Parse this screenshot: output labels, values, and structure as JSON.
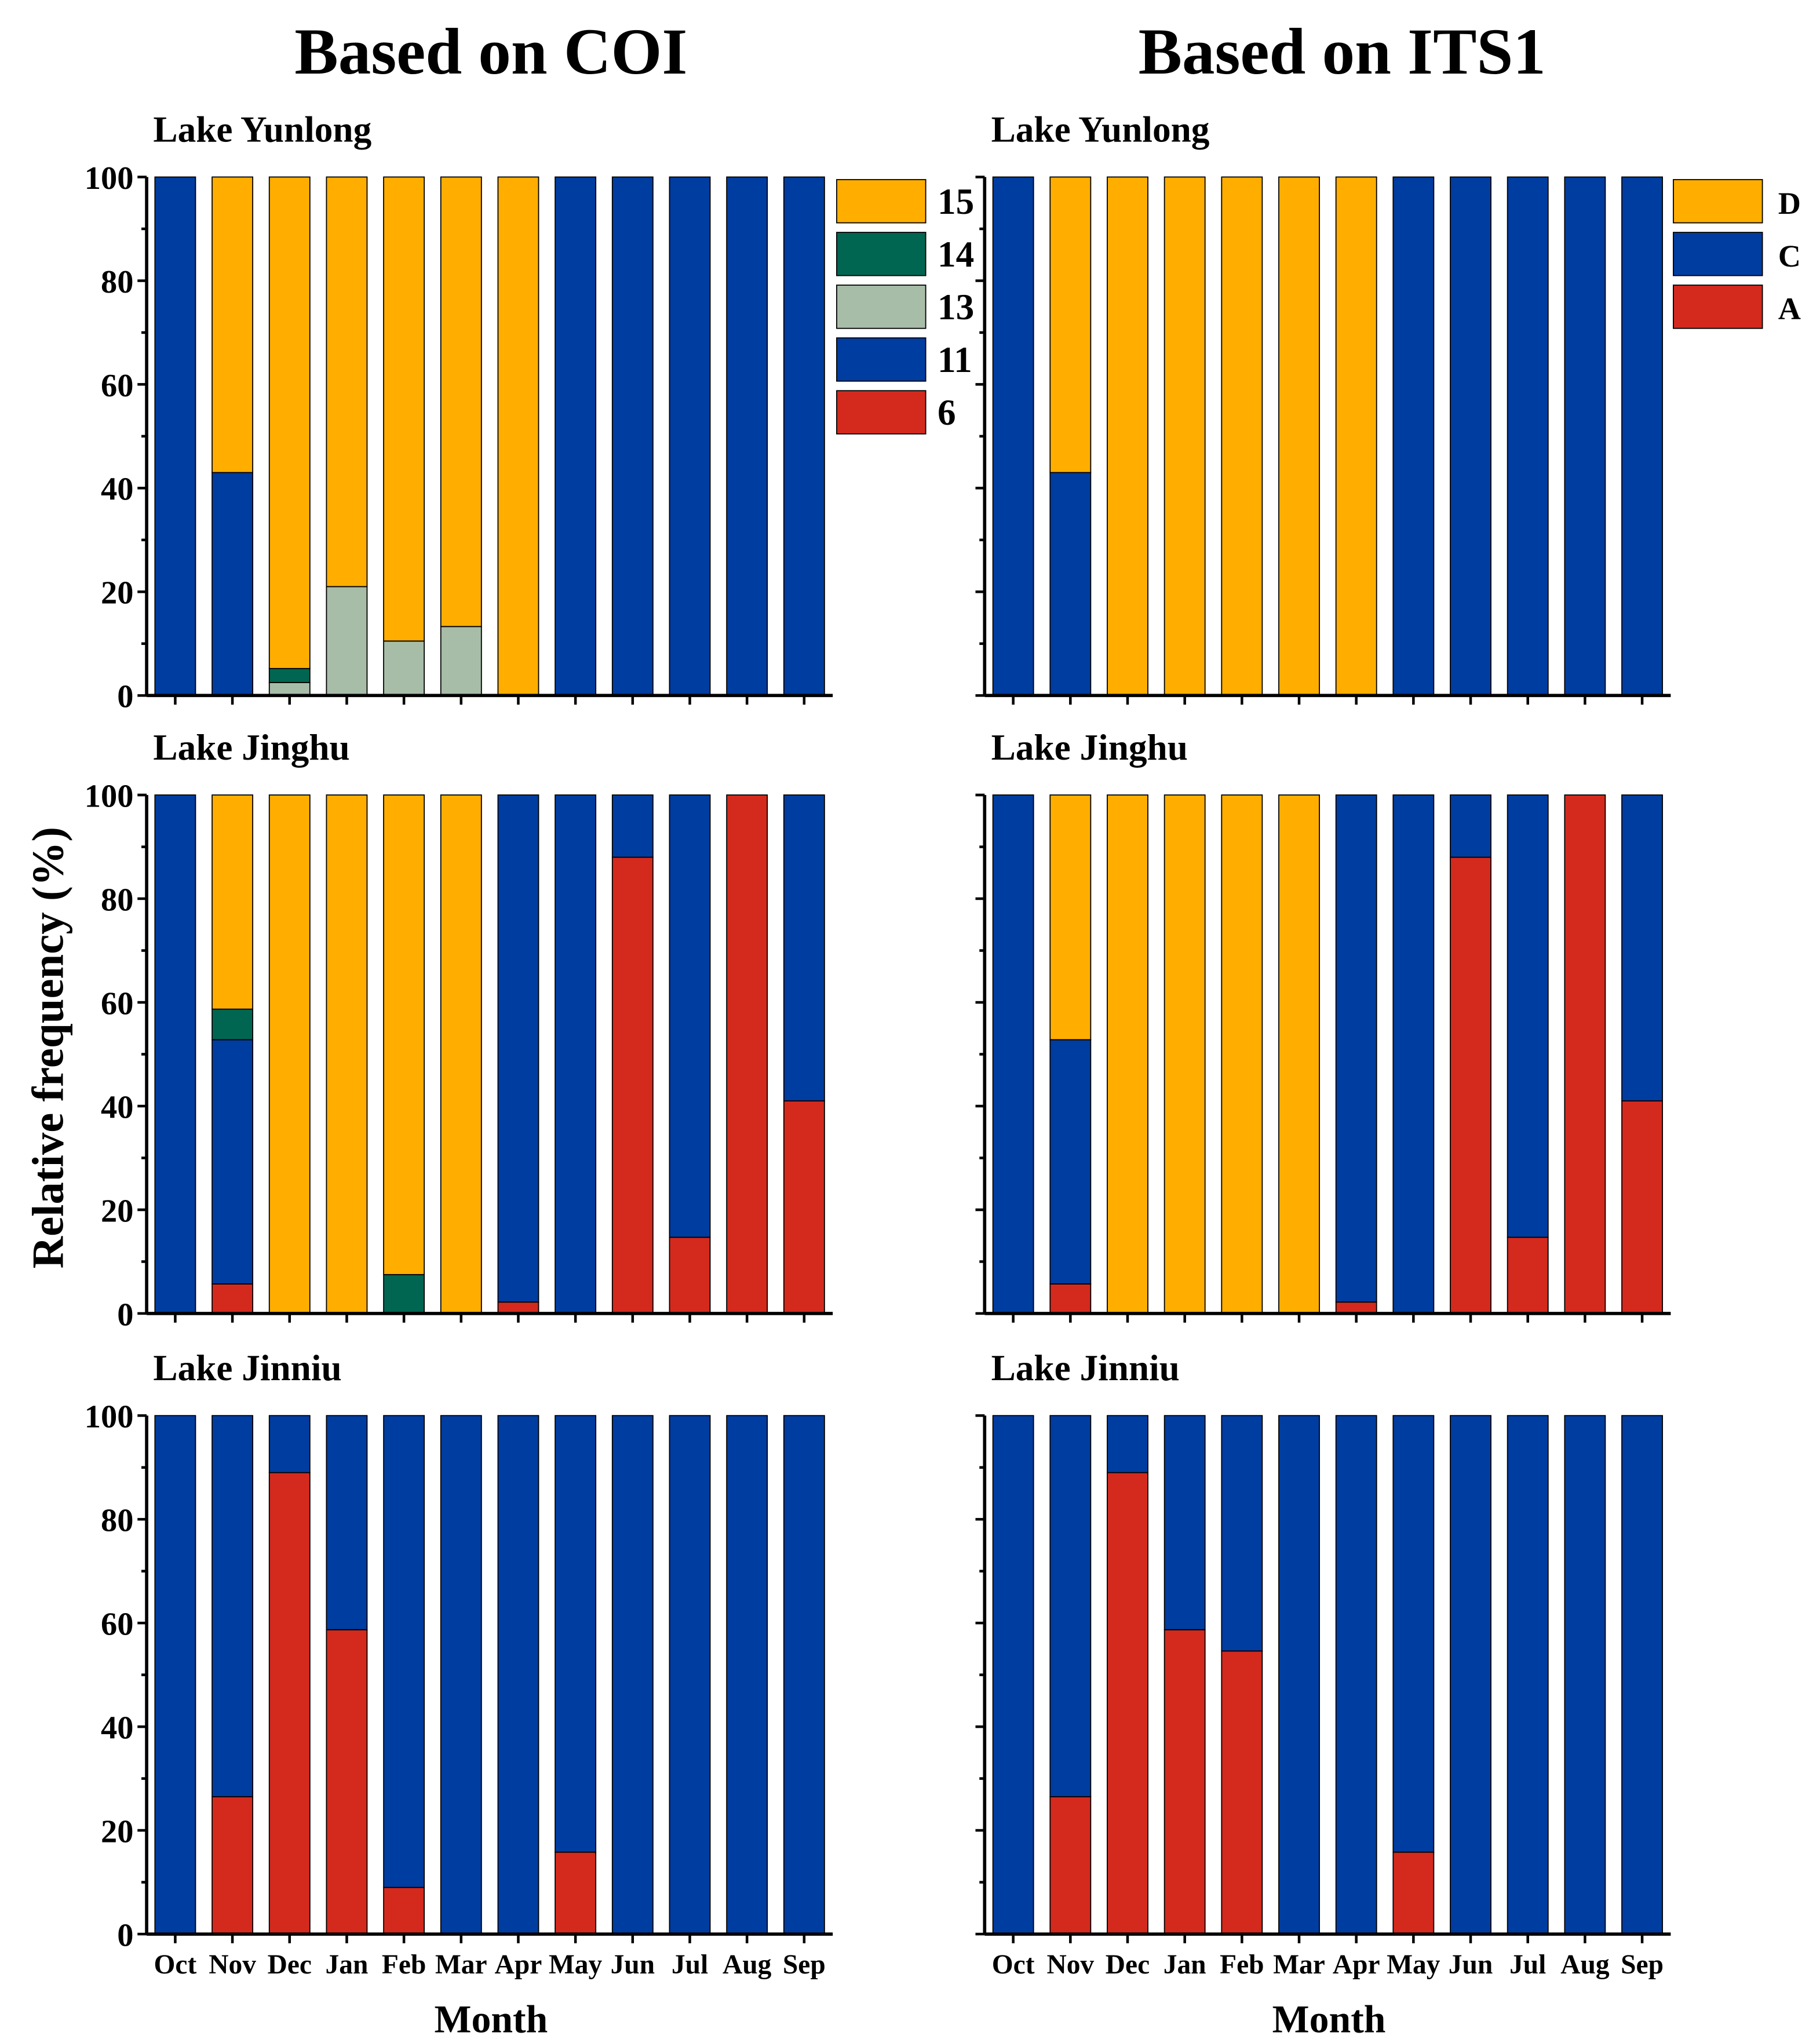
{
  "titles": {
    "coi": "Based on COI",
    "its1": "Based on ITS1"
  },
  "ylabel": "Relative frequency (%)",
  "xlabel": "Month",
  "months": [
    "Oct",
    "Nov",
    "Dec",
    "Jan",
    "Feb",
    "Mar",
    "Apr",
    "May",
    "Jun",
    "Jul",
    "Aug",
    "Sep"
  ],
  "yticks": [
    0,
    20,
    40,
    60,
    80,
    100
  ],
  "colors": {
    "15": "#FFAE00",
    "14": "#006652",
    "13": "#A8BDA8",
    "11": "#003DA0",
    "6": "#D42A1E",
    "D": "#FFAE00",
    "C": "#003DA0",
    "A": "#D42A1E"
  },
  "legends": {
    "coi": [
      "15",
      "14",
      "13",
      "11",
      "6"
    ],
    "its1": [
      "D",
      "C",
      "A"
    ]
  },
  "chart_data": [
    {
      "type": "bar",
      "stacked": true,
      "marker": "COI",
      "title": "Lake Yunlong",
      "ylim": [
        0,
        100
      ],
      "series": [
        {
          "name": "6",
          "values": [
            0,
            0,
            0,
            0,
            0,
            0,
            0,
            0,
            0,
            0,
            0,
            0
          ]
        },
        {
          "name": "11",
          "values": [
            100,
            43,
            0,
            0,
            0,
            0,
            0,
            100,
            100,
            100,
            100,
            100
          ]
        },
        {
          "name": "13",
          "values": [
            0,
            0,
            2.5,
            21,
            10.5,
            13.3,
            0,
            0,
            0,
            0,
            0,
            0
          ]
        },
        {
          "name": "14",
          "values": [
            0,
            0,
            2.7,
            0,
            0,
            0,
            0,
            0,
            0,
            0,
            0,
            0
          ]
        },
        {
          "name": "15",
          "values": [
            0,
            57,
            94.8,
            79,
            89.5,
            86.7,
            100,
            0,
            0,
            0,
            0,
            0
          ]
        }
      ]
    },
    {
      "type": "bar",
      "stacked": true,
      "marker": "ITS1",
      "title": "Lake Yunlong",
      "ylim": [
        0,
        100
      ],
      "series": [
        {
          "name": "A",
          "values": [
            0,
            0,
            0,
            0,
            0,
            0,
            0,
            0,
            0,
            0,
            0,
            0
          ]
        },
        {
          "name": "C",
          "values": [
            100,
            43,
            0,
            0,
            0,
            0,
            0,
            100,
            100,
            100,
            100,
            100
          ]
        },
        {
          "name": "D",
          "values": [
            0,
            57,
            100,
            100,
            100,
            100,
            100,
            0,
            0,
            0,
            0,
            0
          ]
        }
      ]
    },
    {
      "type": "bar",
      "stacked": true,
      "marker": "COI",
      "title": "Lake Jinghu",
      "ylim": [
        0,
        100
      ],
      "series": [
        {
          "name": "6",
          "values": [
            0,
            5.7,
            0,
            0,
            0,
            0,
            2.2,
            0,
            88,
            14.7,
            100,
            41
          ]
        },
        {
          "name": "11",
          "values": [
            100,
            47.1,
            0,
            0,
            0,
            0,
            97.8,
            100,
            12,
            85.3,
            0,
            59
          ]
        },
        {
          "name": "13",
          "values": [
            0,
            0,
            0,
            0,
            0,
            0,
            0,
            0,
            0,
            0,
            0,
            0
          ]
        },
        {
          "name": "14",
          "values": [
            0,
            5.9,
            0,
            0,
            7.5,
            0,
            0,
            0,
            0,
            0,
            0,
            0
          ]
        },
        {
          "name": "15",
          "values": [
            0,
            41.3,
            100,
            100,
            92.5,
            100,
            0,
            0,
            0,
            0,
            0,
            0
          ]
        }
      ]
    },
    {
      "type": "bar",
      "stacked": true,
      "marker": "ITS1",
      "title": "Lake Jinghu",
      "ylim": [
        0,
        100
      ],
      "series": [
        {
          "name": "A",
          "values": [
            0,
            5.7,
            0,
            0,
            0,
            0,
            2.2,
            0,
            88,
            14.7,
            100,
            41
          ]
        },
        {
          "name": "C",
          "values": [
            100,
            47.1,
            0,
            0,
            0,
            0,
            97.8,
            100,
            12,
            85.3,
            0,
            59
          ]
        },
        {
          "name": "D",
          "values": [
            0,
            47.2,
            100,
            100,
            100,
            100,
            0,
            0,
            0,
            0,
            0,
            0
          ]
        }
      ]
    },
    {
      "type": "bar",
      "stacked": true,
      "marker": "COI",
      "title": "Lake Jinniu",
      "ylim": [
        0,
        100
      ],
      "series": [
        {
          "name": "6",
          "values": [
            0,
            26.5,
            89,
            58.7,
            9,
            0,
            0,
            15.8,
            0,
            0,
            0,
            0
          ]
        },
        {
          "name": "11",
          "values": [
            100,
            73.5,
            11,
            41.3,
            91,
            100,
            100,
            84.2,
            100,
            100,
            100,
            100
          ]
        },
        {
          "name": "13",
          "values": [
            0,
            0,
            0,
            0,
            0,
            0,
            0,
            0,
            0,
            0,
            0,
            0
          ]
        },
        {
          "name": "14",
          "values": [
            0,
            0,
            0,
            0,
            0,
            0,
            0,
            0,
            0,
            0,
            0,
            0
          ]
        },
        {
          "name": "15",
          "values": [
            0,
            0,
            0,
            0,
            0,
            0,
            0,
            0,
            0,
            0,
            0,
            0
          ]
        }
      ]
    },
    {
      "type": "bar",
      "stacked": true,
      "marker": "ITS1",
      "title": "Lake Jinniu",
      "ylim": [
        0,
        100
      ],
      "series": [
        {
          "name": "A",
          "values": [
            0,
            26.5,
            89,
            58.7,
            54.6,
            0,
            0,
            15.8,
            0,
            0,
            0,
            0
          ]
        },
        {
          "name": "C",
          "values": [
            100,
            73.5,
            11,
            41.3,
            45.4,
            100,
            100,
            84.2,
            100,
            100,
            100,
            100
          ]
        },
        {
          "name": "D",
          "values": [
            0,
            0,
            0,
            0,
            0,
            0,
            0,
            0,
            0,
            0,
            0,
            0
          ]
        }
      ]
    }
  ]
}
